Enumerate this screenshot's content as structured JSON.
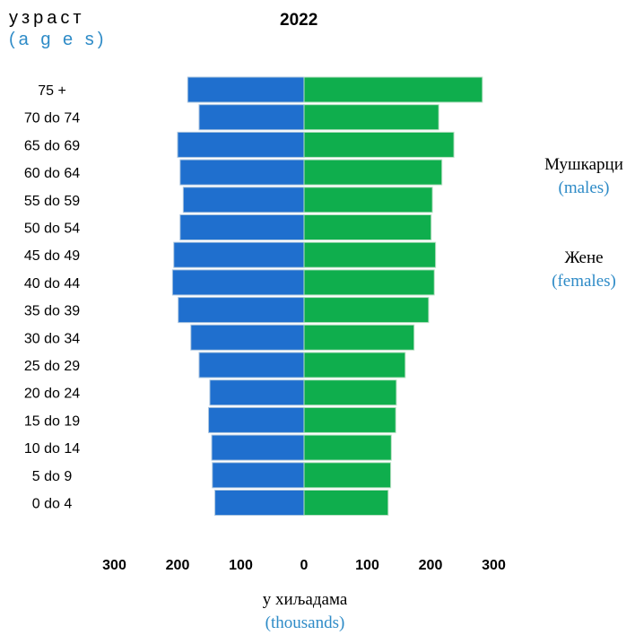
{
  "chart_data": {
    "type": "bar",
    "orientation": "horizontal",
    "subtype": "population-pyramid",
    "title": "2022",
    "ylabel": "узраст",
    "ylabel_sub": "(a g e s)",
    "xlabel": "у хиљадама",
    "xlabel_sub": "(thousands)",
    "xlim": [
      -300,
      300
    ],
    "x_ticks": [
      "300",
      "200",
      "100",
      "0",
      "100",
      "200",
      "300"
    ],
    "x_tick_values": [
      -300,
      -200,
      -100,
      0,
      100,
      200,
      300
    ],
    "categories": [
      "75 +",
      "70 do 74",
      "65 do 69",
      "60 do 64",
      "55 do 59",
      "50 do 54",
      "45 do 49",
      "40 do 44",
      "35 do 39",
      "30 do 34",
      "25 do 29",
      "20 do 24",
      "15 do 19",
      "10 do 14",
      "5 do 9",
      "0 do 4"
    ],
    "series": [
      {
        "name": "Мушкарци",
        "name_sub": "(males)",
        "side": "left",
        "color": "#1f6fce",
        "values": [
          184,
          166,
          200,
          196,
          191,
          196,
          206,
          208,
          199,
          179,
          166,
          149,
          151,
          146,
          145,
          141
        ]
      },
      {
        "name": "Жене",
        "name_sub": "(females)",
        "side": "right",
        "color": "#0fae4d",
        "values": [
          282,
          213,
          237,
          218,
          203,
          201,
          208,
          206,
          197,
          174,
          160,
          146,
          145,
          138,
          137,
          133
        ]
      }
    ],
    "grid": false,
    "legend_position": "right"
  }
}
